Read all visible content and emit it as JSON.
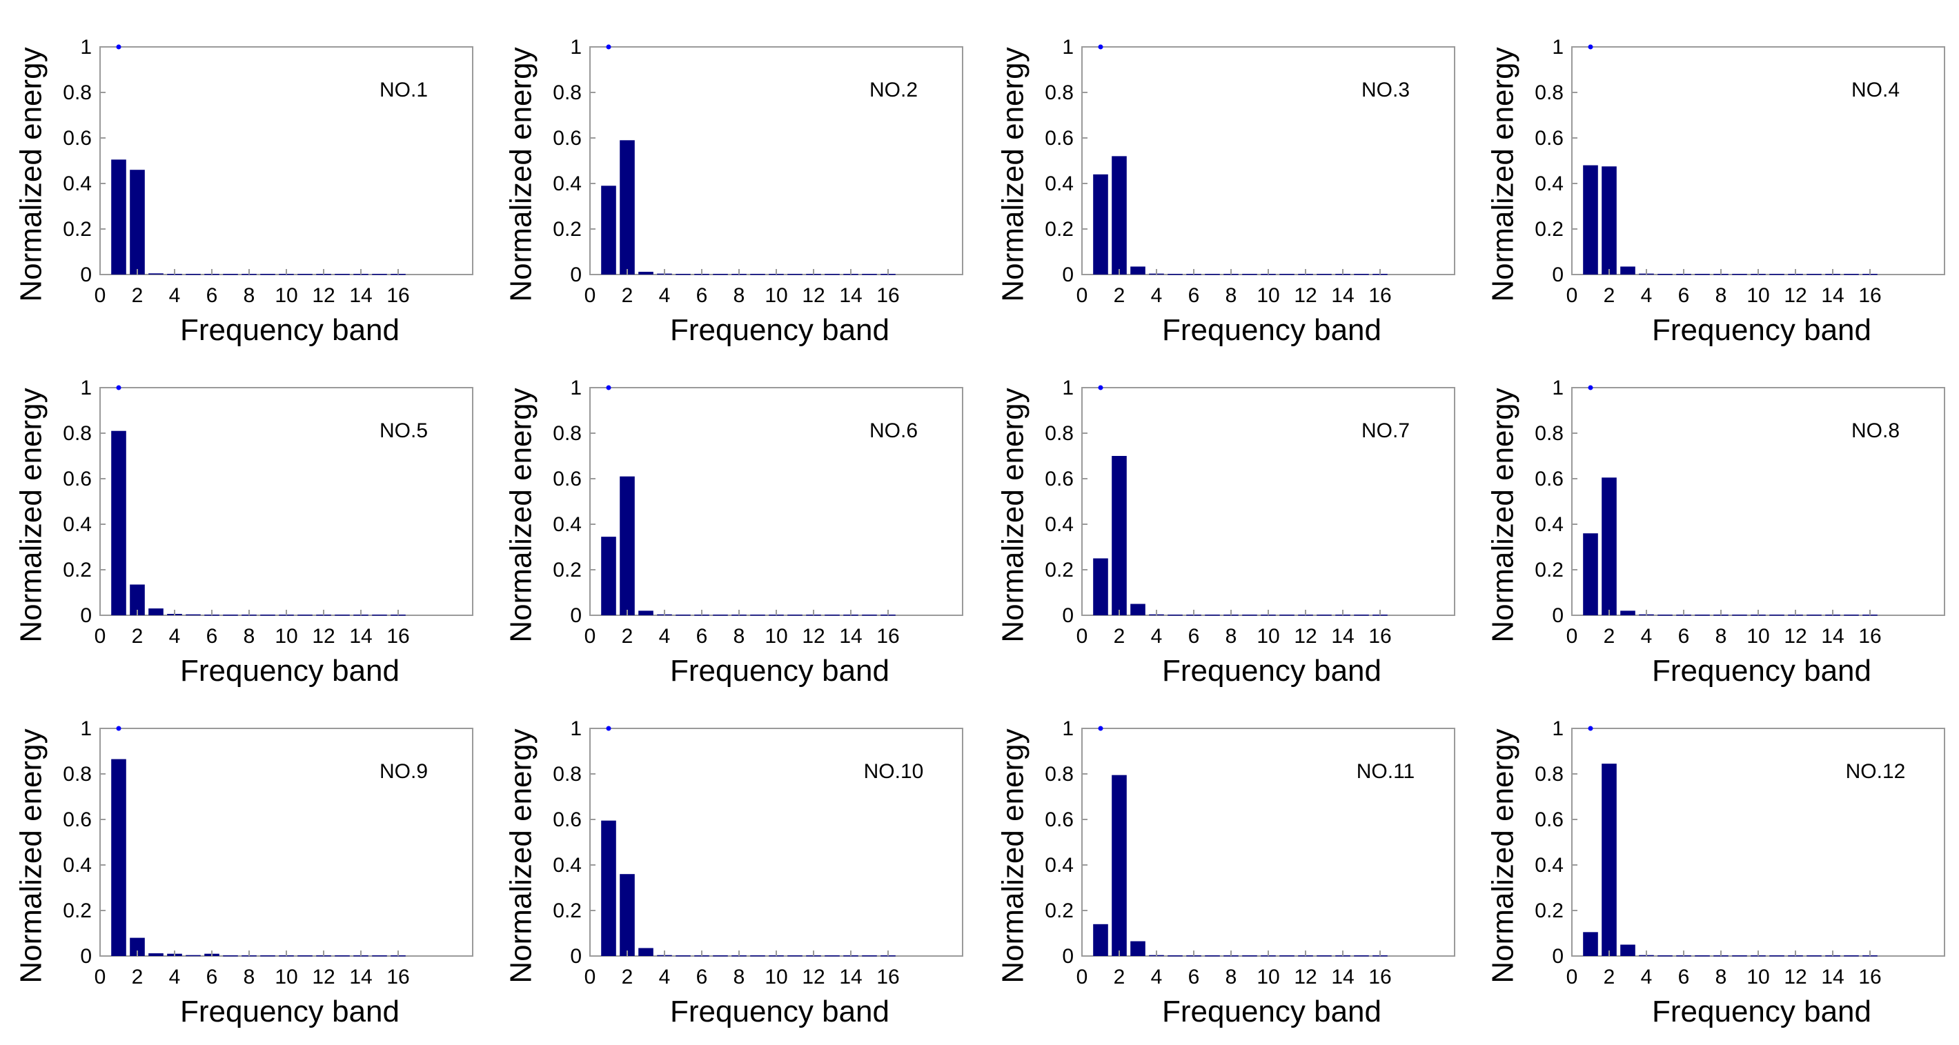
{
  "chart_data": [
    {
      "type": "bar",
      "title": "NO.1",
      "xlabel": "Frequency band",
      "ylabel": "Normalized energy",
      "xlim": [
        0,
        20
      ],
      "ylim": [
        0,
        1
      ],
      "x_ticks": [
        "0",
        "2",
        "4",
        "6",
        "8",
        "10",
        "12",
        "14",
        "16"
      ],
      "y_ticks": [
        "0",
        "0.2",
        "0.4",
        "0.6",
        "0.8",
        "1"
      ],
      "categories": [
        1,
        2,
        3,
        4,
        5,
        6,
        7,
        8,
        9,
        10,
        11,
        12,
        13,
        14,
        15,
        16
      ],
      "values": [
        0.505,
        0.46,
        0.005,
        0.003,
        0.003,
        0.003,
        0.003,
        0.003,
        0.003,
        0.003,
        0.003,
        0.003,
        0.003,
        0.003,
        0.003,
        0.003
      ],
      "marker": {
        "x": 1,
        "y": 1
      }
    },
    {
      "type": "bar",
      "title": "NO.2",
      "xlabel": "Frequency band",
      "ylabel": "Normalized energy",
      "xlim": [
        0,
        20
      ],
      "ylim": [
        0,
        1
      ],
      "x_ticks": [
        "0",
        "2",
        "4",
        "6",
        "8",
        "10",
        "12",
        "14",
        "16"
      ],
      "y_ticks": [
        "0",
        "0.2",
        "0.4",
        "0.6",
        "0.8",
        "1"
      ],
      "categories": [
        1,
        2,
        3,
        4,
        5,
        6,
        7,
        8,
        9,
        10,
        11,
        12,
        13,
        14,
        15,
        16
      ],
      "values": [
        0.39,
        0.59,
        0.012,
        0.004,
        0.003,
        0.003,
        0.003,
        0.003,
        0.003,
        0.003,
        0.003,
        0.003,
        0.003,
        0.003,
        0.003,
        0.003
      ],
      "marker": {
        "x": 1,
        "y": 1
      }
    },
    {
      "type": "bar",
      "title": "NO.3",
      "xlabel": "Frequency band",
      "ylabel": "Normalized energy",
      "xlim": [
        0,
        20
      ],
      "ylim": [
        0,
        1
      ],
      "x_ticks": [
        "0",
        "2",
        "4",
        "6",
        "8",
        "10",
        "12",
        "14",
        "16"
      ],
      "y_ticks": [
        "0",
        "0.2",
        "0.4",
        "0.6",
        "0.8",
        "1"
      ],
      "categories": [
        1,
        2,
        3,
        4,
        5,
        6,
        7,
        8,
        9,
        10,
        11,
        12,
        13,
        14,
        15,
        16
      ],
      "values": [
        0.44,
        0.52,
        0.035,
        0.004,
        0.003,
        0.003,
        0.003,
        0.003,
        0.003,
        0.003,
        0.003,
        0.003,
        0.003,
        0.003,
        0.003,
        0.003
      ],
      "marker": {
        "x": 1,
        "y": 1
      }
    },
    {
      "type": "bar",
      "title": "NO.4",
      "xlabel": "Frequency band",
      "ylabel": "Normalized energy",
      "xlim": [
        0,
        20
      ],
      "ylim": [
        0,
        1
      ],
      "x_ticks": [
        "0",
        "2",
        "4",
        "6",
        "8",
        "10",
        "12",
        "14",
        "16"
      ],
      "y_ticks": [
        "0",
        "0.2",
        "0.4",
        "0.6",
        "0.8",
        "1"
      ],
      "categories": [
        1,
        2,
        3,
        4,
        5,
        6,
        7,
        8,
        9,
        10,
        11,
        12,
        13,
        14,
        15,
        16
      ],
      "values": [
        0.48,
        0.475,
        0.035,
        0.004,
        0.003,
        0.003,
        0.003,
        0.003,
        0.003,
        0.003,
        0.003,
        0.003,
        0.003,
        0.003,
        0.003,
        0.003
      ],
      "marker": {
        "x": 1,
        "y": 1
      }
    },
    {
      "type": "bar",
      "title": "NO.5",
      "xlabel": "Frequency band",
      "ylabel": "Normalized energy",
      "xlim": [
        0,
        20
      ],
      "ylim": [
        0,
        1
      ],
      "x_ticks": [
        "0",
        "2",
        "4",
        "6",
        "8",
        "10",
        "12",
        "14",
        "16"
      ],
      "y_ticks": [
        "0",
        "0.2",
        "0.4",
        "0.6",
        "0.8",
        "1"
      ],
      "categories": [
        1,
        2,
        3,
        4,
        5,
        6,
        7,
        8,
        9,
        10,
        11,
        12,
        13,
        14,
        15,
        16
      ],
      "values": [
        0.81,
        0.135,
        0.03,
        0.006,
        0.004,
        0.003,
        0.003,
        0.003,
        0.003,
        0.003,
        0.003,
        0.003,
        0.003,
        0.003,
        0.003,
        0.003
      ],
      "marker": {
        "x": 1,
        "y": 1
      }
    },
    {
      "type": "bar",
      "title": "NO.6",
      "xlabel": "Frequency band",
      "ylabel": "Normalized energy",
      "xlim": [
        0,
        20
      ],
      "ylim": [
        0,
        1
      ],
      "x_ticks": [
        "0",
        "2",
        "4",
        "6",
        "8",
        "10",
        "12",
        "14",
        "16"
      ],
      "y_ticks": [
        "0",
        "0.2",
        "0.4",
        "0.6",
        "0.8",
        "1"
      ],
      "categories": [
        1,
        2,
        3,
        4,
        5,
        6,
        7,
        8,
        9,
        10,
        11,
        12,
        13,
        14,
        15,
        16
      ],
      "values": [
        0.345,
        0.61,
        0.02,
        0.004,
        0.003,
        0.003,
        0.003,
        0.003,
        0.003,
        0.003,
        0.003,
        0.003,
        0.003,
        0.003,
        0.003,
        0.003
      ],
      "marker": {
        "x": 1,
        "y": 1
      }
    },
    {
      "type": "bar",
      "title": "NO.7",
      "xlabel": "Frequency band",
      "ylabel": "Normalized energy",
      "xlim": [
        0,
        20
      ],
      "ylim": [
        0,
        1
      ],
      "x_ticks": [
        "0",
        "2",
        "4",
        "6",
        "8",
        "10",
        "12",
        "14",
        "16"
      ],
      "y_ticks": [
        "0",
        "0.2",
        "0.4",
        "0.6",
        "0.8",
        "1"
      ],
      "categories": [
        1,
        2,
        3,
        4,
        5,
        6,
        7,
        8,
        9,
        10,
        11,
        12,
        13,
        14,
        15,
        16
      ],
      "values": [
        0.25,
        0.7,
        0.05,
        0.004,
        0.003,
        0.003,
        0.003,
        0.003,
        0.003,
        0.003,
        0.003,
        0.003,
        0.003,
        0.003,
        0.003,
        0.003
      ],
      "marker": {
        "x": 1,
        "y": 1
      }
    },
    {
      "type": "bar",
      "title": "NO.8",
      "xlabel": "Frequency band",
      "ylabel": "Normalized energy",
      "xlim": [
        0,
        20
      ],
      "ylim": [
        0,
        1
      ],
      "x_ticks": [
        "0",
        "2",
        "4",
        "6",
        "8",
        "10",
        "12",
        "14",
        "16"
      ],
      "y_ticks": [
        "0",
        "0.2",
        "0.4",
        "0.6",
        "0.8",
        "1"
      ],
      "categories": [
        1,
        2,
        3,
        4,
        5,
        6,
        7,
        8,
        9,
        10,
        11,
        12,
        13,
        14,
        15,
        16
      ],
      "values": [
        0.36,
        0.605,
        0.02,
        0.004,
        0.003,
        0.003,
        0.003,
        0.003,
        0.003,
        0.003,
        0.003,
        0.003,
        0.003,
        0.003,
        0.003,
        0.003
      ],
      "marker": {
        "x": 1,
        "y": 1
      }
    },
    {
      "type": "bar",
      "title": "NO.9",
      "xlabel": "Frequency band",
      "ylabel": "Normalized energy",
      "xlim": [
        0,
        20
      ],
      "ylim": [
        0,
        1
      ],
      "x_ticks": [
        "0",
        "2",
        "4",
        "6",
        "8",
        "10",
        "12",
        "14",
        "16"
      ],
      "y_ticks": [
        "0",
        "0.2",
        "0.4",
        "0.6",
        "0.8",
        "1"
      ],
      "categories": [
        1,
        2,
        3,
        4,
        5,
        6,
        7,
        8,
        9,
        10,
        11,
        12,
        13,
        14,
        15,
        16
      ],
      "values": [
        0.865,
        0.08,
        0.012,
        0.01,
        0.004,
        0.01,
        0.003,
        0.003,
        0.003,
        0.003,
        0.003,
        0.003,
        0.003,
        0.003,
        0.003,
        0.003
      ],
      "marker": {
        "x": 1,
        "y": 1
      }
    },
    {
      "type": "bar",
      "title": "NO.10",
      "xlabel": "Frequency band",
      "ylabel": "Normalized energy",
      "xlim": [
        0,
        20
      ],
      "ylim": [
        0,
        1
      ],
      "x_ticks": [
        "0",
        "2",
        "4",
        "6",
        "8",
        "10",
        "12",
        "14",
        "16"
      ],
      "y_ticks": [
        "0",
        "0.2",
        "0.4",
        "0.6",
        "0.8",
        "1"
      ],
      "categories": [
        1,
        2,
        3,
        4,
        5,
        6,
        7,
        8,
        9,
        10,
        11,
        12,
        13,
        14,
        15,
        16
      ],
      "values": [
        0.595,
        0.36,
        0.035,
        0.004,
        0.003,
        0.003,
        0.003,
        0.003,
        0.003,
        0.003,
        0.003,
        0.003,
        0.003,
        0.003,
        0.003,
        0.003
      ],
      "marker": {
        "x": 1,
        "y": 1
      }
    },
    {
      "type": "bar",
      "title": "NO.11",
      "xlabel": "Frequency band",
      "ylabel": "Normalized energy",
      "xlim": [
        0,
        20
      ],
      "ylim": [
        0,
        1
      ],
      "x_ticks": [
        "0",
        "2",
        "4",
        "6",
        "8",
        "10",
        "12",
        "14",
        "16"
      ],
      "y_ticks": [
        "0",
        "0.2",
        "0.4",
        "0.6",
        "0.8",
        "1"
      ],
      "categories": [
        1,
        2,
        3,
        4,
        5,
        6,
        7,
        8,
        9,
        10,
        11,
        12,
        13,
        14,
        15,
        16
      ],
      "values": [
        0.14,
        0.795,
        0.065,
        0.004,
        0.003,
        0.003,
        0.003,
        0.003,
        0.003,
        0.003,
        0.003,
        0.003,
        0.003,
        0.003,
        0.003,
        0.003
      ],
      "marker": {
        "x": 1,
        "y": 1
      }
    },
    {
      "type": "bar",
      "title": "NO.12",
      "xlabel": "Frequency band",
      "ylabel": "Normalized energy",
      "xlim": [
        0,
        20
      ],
      "ylim": [
        0,
        1
      ],
      "x_ticks": [
        "0",
        "2",
        "4",
        "6",
        "8",
        "10",
        "12",
        "14",
        "16"
      ],
      "y_ticks": [
        "0",
        "0.2",
        "0.4",
        "0.6",
        "0.8",
        "1"
      ],
      "categories": [
        1,
        2,
        3,
        4,
        5,
        6,
        7,
        8,
        9,
        10,
        11,
        12,
        13,
        14,
        15,
        16
      ],
      "values": [
        0.105,
        0.845,
        0.05,
        0.004,
        0.003,
        0.003,
        0.003,
        0.003,
        0.003,
        0.003,
        0.003,
        0.003,
        0.003,
        0.003,
        0.003,
        0.003
      ],
      "marker": {
        "x": 1,
        "y": 1
      }
    }
  ],
  "colors": {
    "bar": "#000080",
    "marker": "#0000ff",
    "axis": "#9a9a9a"
  }
}
